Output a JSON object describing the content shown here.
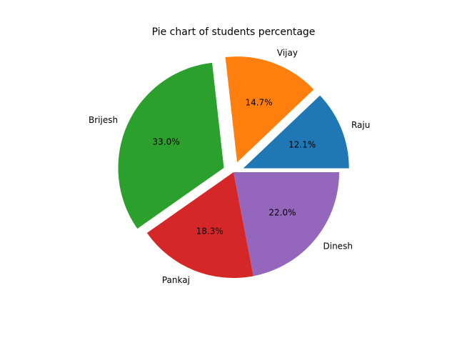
{
  "chart_data": {
    "type": "pie",
    "title": "Pie chart of students percentage",
    "slices": [
      {
        "label": "Raju",
        "value": 12.1,
        "pct_label": "12.1%",
        "color": "#1f77b4",
        "explode": 0.1
      },
      {
        "label": "Vijay",
        "value": 14.7,
        "pct_label": "14.7%",
        "color": "#ff7f0e",
        "explode": 0.1
      },
      {
        "label": "Brijesh",
        "value": 33.0,
        "pct_label": "33.0%",
        "color": "#2ca02c",
        "explode": 0.1
      },
      {
        "label": "Pankaj",
        "value": 18.3,
        "pct_label": "18.3%",
        "color": "#d62728",
        "explode": 0
      },
      {
        "label": "Dinesh",
        "value": 22.0,
        "pct_label": "22.0%",
        "color": "#9467bd",
        "explode": 0
      }
    ],
    "start_angle_deg": 0,
    "direction": "counterclockwise",
    "legend": "none"
  }
}
